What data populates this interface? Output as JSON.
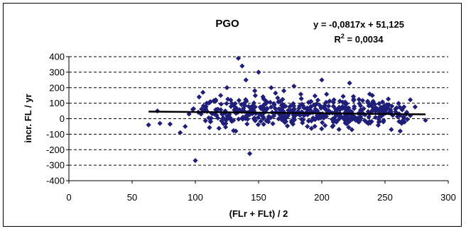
{
  "chart_data": {
    "type": "scatter",
    "title": "PGO",
    "xlabel": "(FLr + FLt) / 2",
    "ylabel": "incr. FL / yr",
    "xlim": [
      0,
      300
    ],
    "ylim": [
      -400,
      400
    ],
    "xticks": [
      0,
      50,
      100,
      150,
      200,
      250,
      300
    ],
    "yticks": [
      400,
      300,
      200,
      100,
      0,
      -100,
      -200,
      -300,
      -400
    ],
    "grid": "horizontal dashed",
    "marker_color": "#1F1F7A",
    "trendline_color": "#000000",
    "trendline": {
      "equation_text": "y = -0,0817x + 51,125",
      "r2_label": "R",
      "r2_value_text": " = 0,0034",
      "slope": -0.0817,
      "intercept": 51.125,
      "x_range": [
        63,
        282
      ]
    },
    "x": [],
    "y": []
  }
}
